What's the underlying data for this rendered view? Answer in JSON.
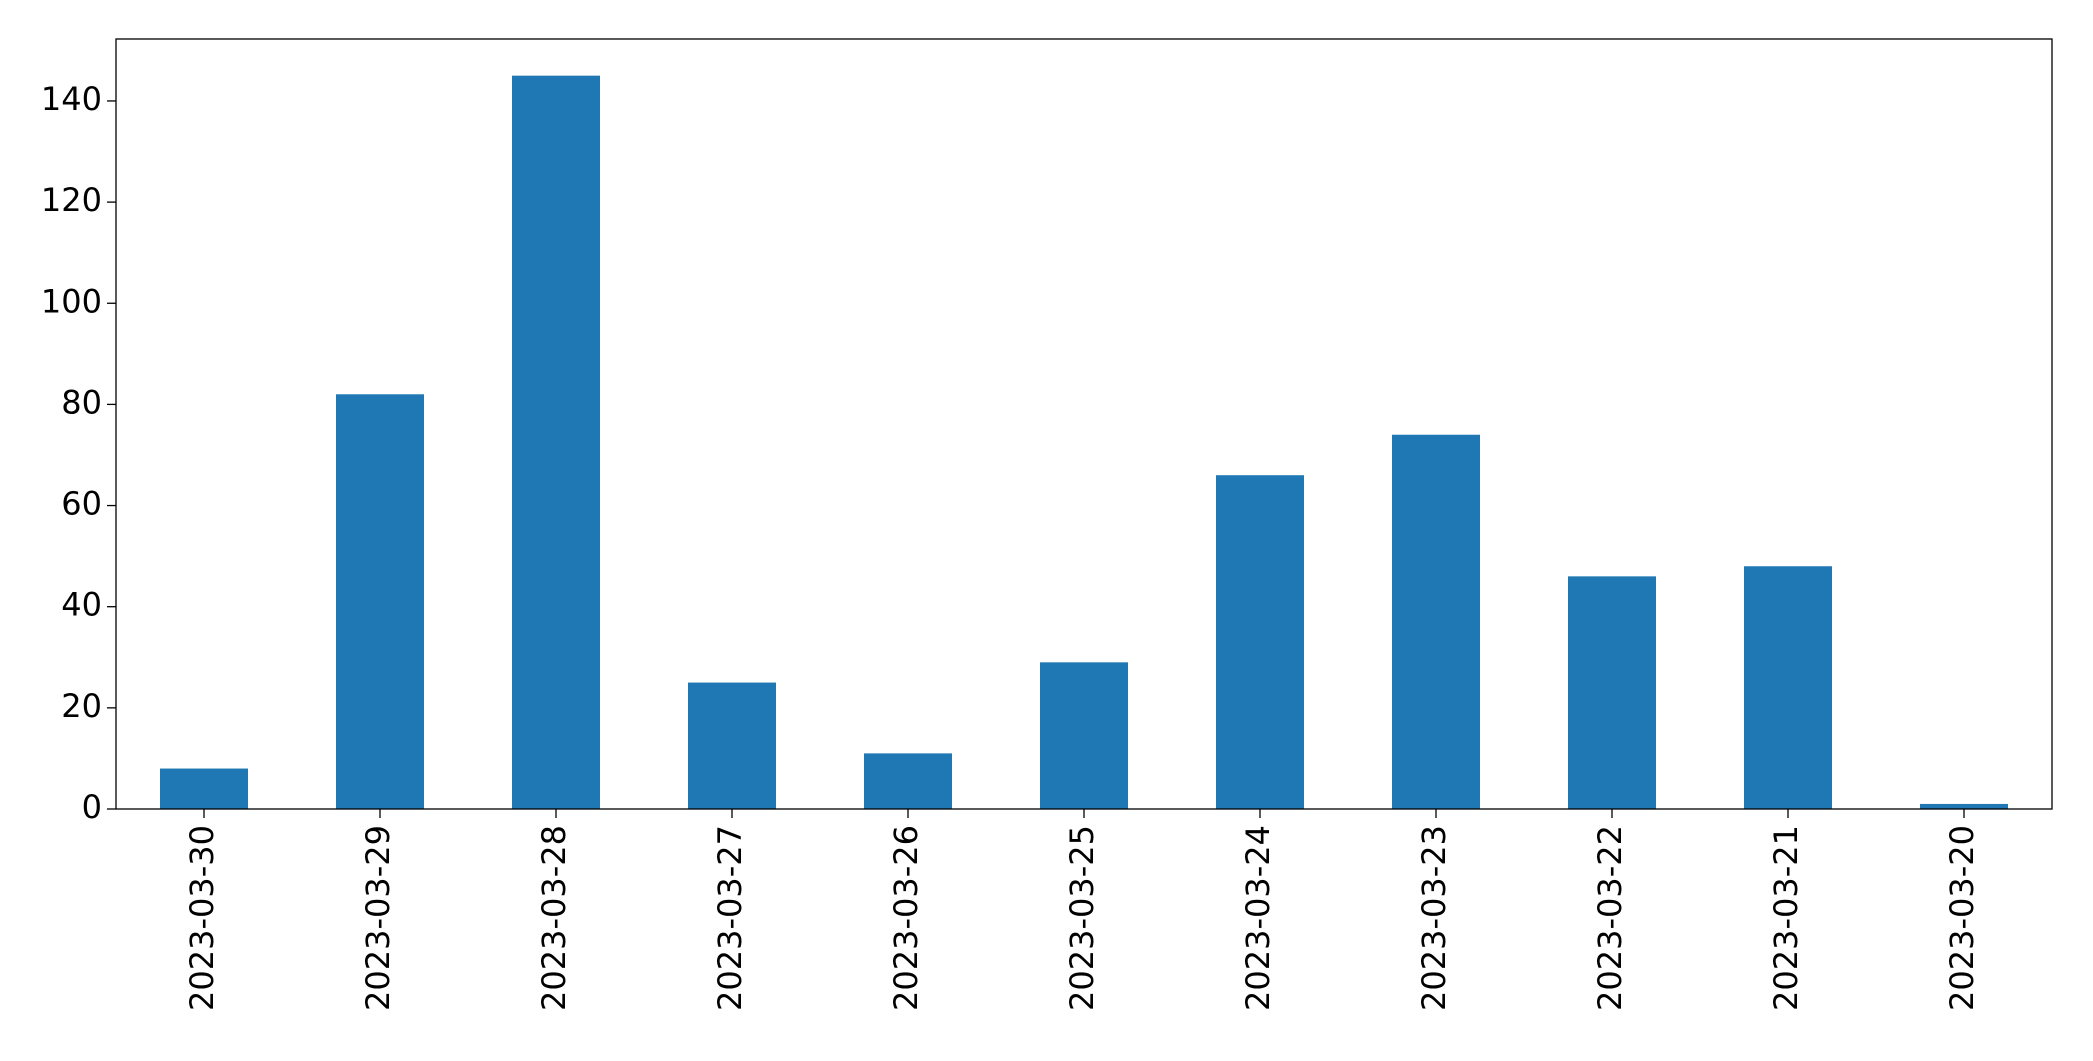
{
  "chart_data": {
    "type": "bar",
    "categories": [
      "2023-03-30",
      "2023-03-29",
      "2023-03-28",
      "2023-03-27",
      "2023-03-26",
      "2023-03-25",
      "2023-03-24",
      "2023-03-23",
      "2023-03-22",
      "2023-03-21",
      "2023-03-20"
    ],
    "values": [
      8,
      82,
      145,
      25,
      11,
      29,
      66,
      74,
      46,
      48,
      1
    ],
    "color": "#1f77b4",
    "ylim": [
      0,
      152.25
    ],
    "yticks": [
      0,
      20,
      40,
      60,
      80,
      100,
      120,
      140
    ],
    "grid": false
  }
}
